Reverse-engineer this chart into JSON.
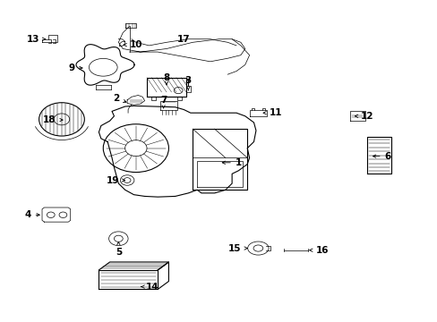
{
  "background_color": "#ffffff",
  "line_color": "#000000",
  "fig_width": 4.89,
  "fig_height": 3.6,
  "dpi": 100,
  "label_positions": {
    "1": [
      0.585,
      0.495,
      0.555,
      0.495
    ],
    "2": [
      0.31,
      0.685,
      0.285,
      0.7
    ],
    "3": [
      0.43,
      0.73,
      0.43,
      0.755
    ],
    "4": [
      0.095,
      0.33,
      0.06,
      0.33
    ],
    "5": [
      0.275,
      0.255,
      0.275,
      0.215
    ],
    "6": [
      0.87,
      0.49,
      0.9,
      0.49
    ],
    "7": [
      0.365,
      0.665,
      0.365,
      0.69
    ],
    "8": [
      0.4,
      0.74,
      0.4,
      0.765
    ],
    "9": [
      0.2,
      0.76,
      0.17,
      0.76
    ],
    "10": [
      0.28,
      0.865,
      0.315,
      0.865
    ],
    "11": [
      0.62,
      0.645,
      0.655,
      0.645
    ],
    "12": [
      0.81,
      0.635,
      0.845,
      0.635
    ],
    "13": [
      0.08,
      0.875,
      0.048,
      0.875
    ],
    "14": [
      0.31,
      0.105,
      0.34,
      0.105
    ],
    "15": [
      0.57,
      0.23,
      0.542,
      0.23
    ],
    "16": [
      0.72,
      0.225,
      0.755,
      0.225
    ],
    "17": [
      0.45,
      0.87,
      0.45,
      0.87
    ],
    "18": [
      0.105,
      0.63,
      0.07,
      0.63
    ],
    "19": [
      0.285,
      0.43,
      0.255,
      0.43
    ]
  }
}
